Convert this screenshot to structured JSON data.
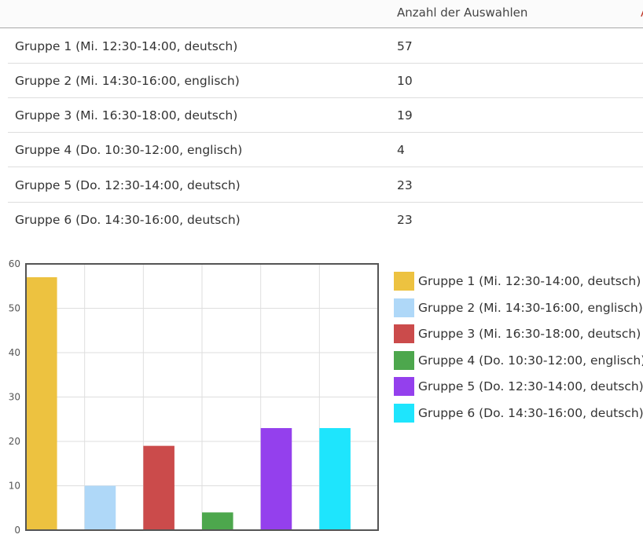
{
  "table": {
    "header": {
      "count_label": "Anzahl der Auswahlen",
      "clipped_label": "A"
    },
    "rows": [
      {
        "name": "Gruppe 1 (Mi. 12:30-14:00, deutsch)",
        "count": "57"
      },
      {
        "name": "Gruppe 2 (Mi. 14:30-16:00, englisch)",
        "count": "10"
      },
      {
        "name": "Gruppe 3 (Mi. 16:30-18:00, deutsch)",
        "count": "19"
      },
      {
        "name": "Gruppe 4 (Do. 10:30-12:00, englisch)",
        "count": "4"
      },
      {
        "name": "Gruppe 5 (Do. 12:30-14:00, deutsch)",
        "count": "23"
      },
      {
        "name": "Gruppe 6 (Do. 14:30-16:00, deutsch)",
        "count": "23"
      }
    ]
  },
  "chart_data": {
    "type": "bar",
    "categories": [
      "Gruppe 1 (Mi. 12:30-14:00, deutsch)",
      "Gruppe 2 (Mi. 14:30-16:00, englisch)",
      "Gruppe 3 (Mi. 16:30-18:00, deutsch)",
      "Gruppe 4 (Do. 10:30-12:00, englisch)",
      "Gruppe 5 (Do. 12:30-14:00, deutsch)",
      "Gruppe 6 (Do. 14:30-16:00, deutsch)"
    ],
    "values": [
      57,
      10,
      19,
      4,
      23,
      23
    ],
    "colors": [
      "#edc240",
      "#afd8f8",
      "#cb4b4b",
      "#4da74d",
      "#9440ed",
      "#1ee5fd"
    ],
    "ylim": [
      0,
      60
    ],
    "yticks": [
      "0",
      "10",
      "20",
      "30",
      "40",
      "50",
      "60"
    ],
    "grid": true,
    "legend": "right",
    "title": "",
    "xlabel": "",
    "ylabel": ""
  }
}
